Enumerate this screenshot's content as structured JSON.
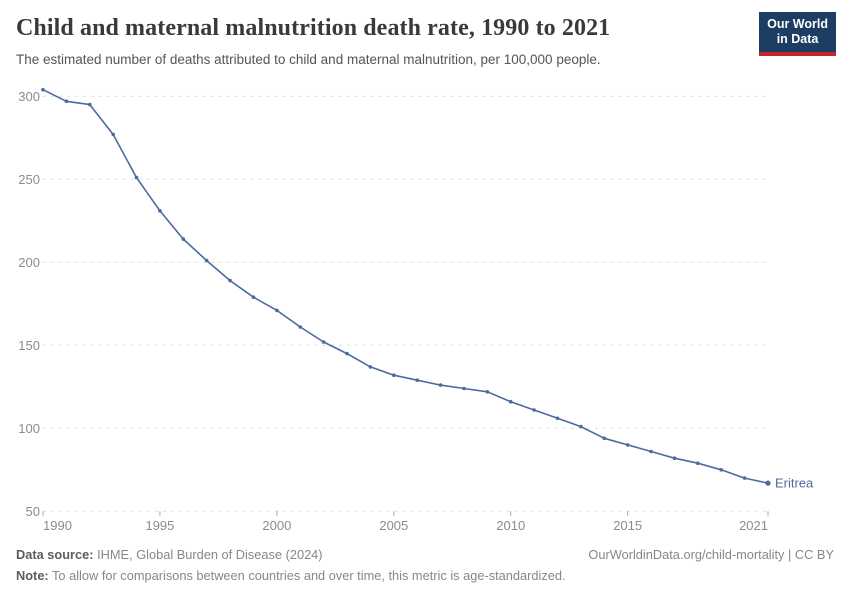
{
  "header": {
    "title": "Child and maternal malnutrition death rate, 1990 to 2021",
    "subtitle": "The estimated number of deaths attributed to child and maternal malnutrition, per 100,000 people.",
    "logo": {
      "line1": "Our World",
      "line2": "in Data"
    }
  },
  "chart_data": {
    "type": "line",
    "title": "Child and maternal malnutrition death rate, 1990 to 2021",
    "xlabel": "",
    "ylabel": "",
    "xlim": [
      1990,
      2021
    ],
    "ylim": [
      50,
      310
    ],
    "grid": "horizontal-dashed",
    "legend_position": "end-of-line-label",
    "x_ticks": [
      1990,
      1995,
      2000,
      2005,
      2010,
      2015,
      2021
    ],
    "y_ticks": [
      50,
      100,
      150,
      200,
      250,
      300
    ],
    "x": [
      1990,
      1991,
      1992,
      1993,
      1994,
      1995,
      1996,
      1997,
      1998,
      1999,
      2000,
      2001,
      2002,
      2003,
      2004,
      2005,
      2006,
      2007,
      2008,
      2009,
      2010,
      2011,
      2012,
      2013,
      2014,
      2015,
      2016,
      2017,
      2018,
      2019,
      2020,
      2021
    ],
    "series": [
      {
        "name": "Eritrea",
        "color": "#4c6a9c",
        "values": [
          304,
          297,
          295,
          277,
          251,
          231,
          214,
          201,
          189,
          179,
          171,
          161,
          152,
          145,
          137,
          132,
          129,
          126,
          124,
          122,
          116,
          111,
          106,
          101,
          94,
          90,
          86,
          82,
          79,
          75,
          70,
          67
        ]
      }
    ]
  },
  "colors": {
    "series": "#4c6a9c",
    "gridline": "#dedede",
    "axis_label": "#8c8c8c",
    "tick": "#a8a8a8",
    "title": "#3a3a3a",
    "subtitle": "#555555",
    "logo_bg": "#1d3d63",
    "logo_bar": "#c4262c",
    "footer_text": "#878787"
  },
  "footer": {
    "data_source_label": "Data source:",
    "data_source_text": " IHME, Global Burden of Disease (2024)",
    "link": "OurWorldinData.org/child-mortality | CC BY",
    "note_label": "Note:",
    "note_text": " To allow for comparisons between countries and over time, this metric is age-standardized."
  }
}
